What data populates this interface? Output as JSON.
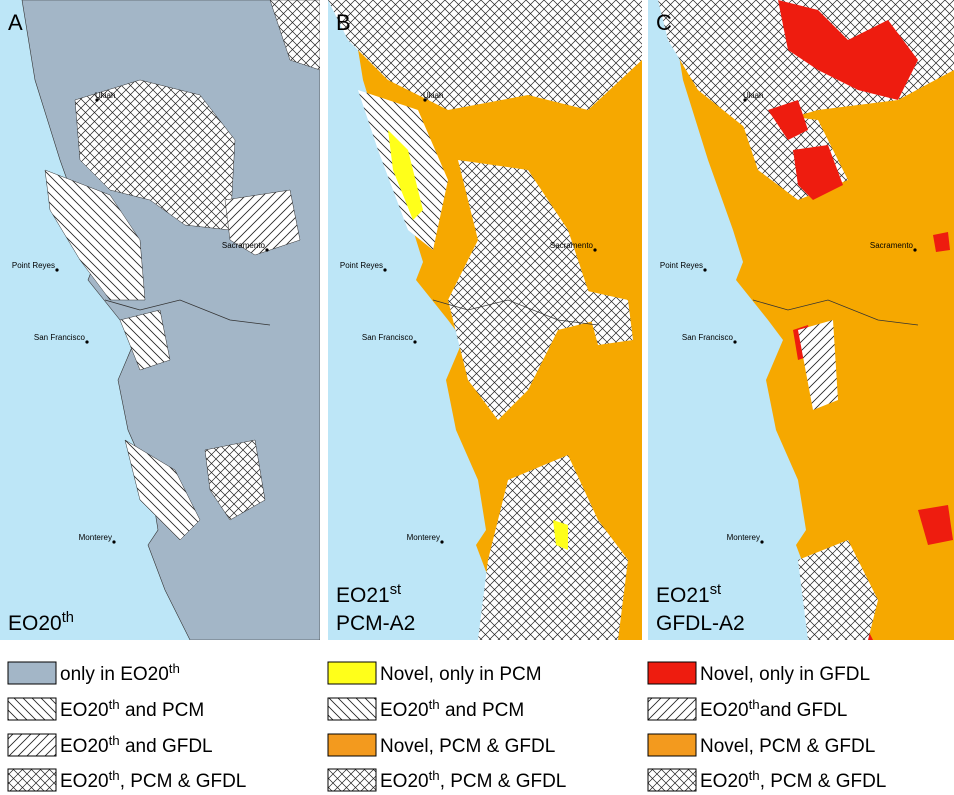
{
  "panels": [
    {
      "letter": "A",
      "caption": [
        {
          "pre": "EO20",
          "sup": "th"
        }
      ],
      "cities": [
        "Ukiah",
        "Sacramento",
        "Point Reyes",
        "San Francisco",
        "Monterey"
      ]
    },
    {
      "letter": "B",
      "caption": [
        {
          "pre": "EO21",
          "sup": "st"
        },
        {
          "pre": "PCM-A2"
        }
      ],
      "cities": [
        "Ukiah",
        "Sacramento",
        "Point Reyes",
        "San Francisco",
        "Monterey"
      ]
    },
    {
      "letter": "C",
      "caption": [
        {
          "pre": "EO21",
          "sup": "st"
        },
        {
          "pre": "GFDL-A2"
        }
      ],
      "cities": [
        "Ukiah",
        "Sacramento",
        "Point Reyes",
        "San Francisco",
        "Monterey"
      ]
    }
  ],
  "legend": [
    [
      {
        "pre": "only in EO20",
        "sup": "th"
      },
      {
        "pre": "EO20",
        "sup": "th",
        "post": " and PCM"
      },
      {
        "pre": "EO20",
        "sup": "th",
        "post": " and GFDL"
      },
      {
        "pre": "EO20",
        "sup": "th",
        "post": ", PCM & GFDL"
      }
    ],
    [
      {
        "pre": "Novel, only in PCM"
      },
      {
        "pre": "EO20",
        "sup": "th",
        "post": " and PCM"
      },
      {
        "pre": "Novel, PCM & GFDL"
      },
      {
        "pre": "EO20",
        "sup": "th",
        "post": ", PCM & GFDL"
      }
    ],
    [
      {
        "pre": "Novel, only in GFDL"
      },
      {
        "pre": "EO20",
        "sup": "th",
        "post": "and GFDL"
      },
      {
        "pre": "Novel, PCM & GFDL"
      },
      {
        "pre": "EO20",
        "sup": "th",
        "post": ", PCM & GFDL"
      }
    ]
  ]
}
